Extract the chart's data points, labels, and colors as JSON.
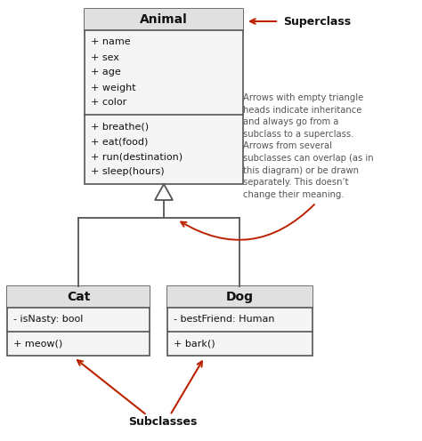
{
  "bg_color": "#ffffff",
  "box_fill": "#f5f5f5",
  "box_edge": "#555555",
  "title_fill": "#e0e0e0",
  "text_color": "#111111",
  "red_color": "#bb2200",
  "gray_text": "#555555",
  "animal": {
    "title": "Animal",
    "attrs": [
      "+ name",
      "+ sex",
      "+ age",
      "+ weight",
      "+ color"
    ],
    "methods": [
      "+ breathe()",
      "+ eat(food)",
      "+ run(destination)",
      "+ sleep(hours)"
    ]
  },
  "cat": {
    "title": "Cat",
    "attrs": [
      "- isNasty: bool"
    ],
    "methods": [
      "+ meow()"
    ]
  },
  "dog": {
    "title": "Dog",
    "attrs": [
      "- bestFriend: Human"
    ],
    "methods": [
      "+ bark()"
    ]
  },
  "superclass_label": "Superclass",
  "subclasses_label": "Subclasses",
  "annotation_text": "Arrows with empty triangle\nheads indicate inheritance\nand always go from a\nsubclass to a superclass.\nArrows from several\nsubclasses can overlap (as in\nthis diagram) or be drawn\nseparately. This doesn’t\nchange their meaning."
}
